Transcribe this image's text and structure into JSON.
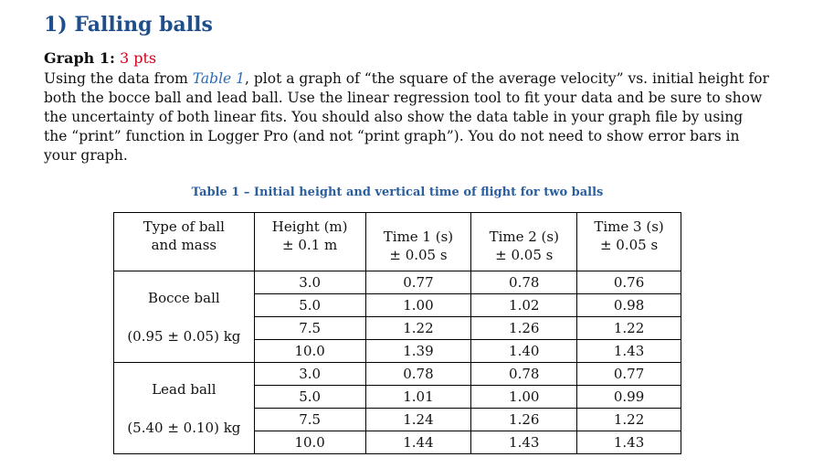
{
  "heading": "1) Falling balls",
  "graph": {
    "label": "Graph 1:",
    "points": "3 pts"
  },
  "paragraph": {
    "line1_a": "Using the data from ",
    "line1_ref": "Table 1",
    "line1_b": ", plot a graph of “the square of the average velocity” vs. initial height for",
    "line2": "both the bocce ball and lead ball. Use the linear regression tool to fit your data and be sure to show",
    "line3": "the uncertainty of both linear fits. You should also show the data table in your graph file by using",
    "line4": "the “print” function in Logger Pro (and not “print graph”). You do not need to show error bars in",
    "line5": "your graph."
  },
  "table": {
    "caption": "Table 1 – Initial height and vertical time of flight for two balls",
    "headers": [
      {
        "line1": "Type of ball",
        "line2": "and mass"
      },
      {
        "line1": "Height (m)",
        "line2": "± 0.1 m"
      },
      {
        "line1": "Time 1 (s)",
        "line2": "± 0.05 s"
      },
      {
        "line1": "Time 2 (s)",
        "line2": "± 0.05 s"
      },
      {
        "line1": "Time 3 (s)",
        "line2": "± 0.05 s"
      }
    ],
    "groups": [
      {
        "name": "Bocce ball",
        "mass": "(0.95 ± 0.05) kg",
        "rows": [
          [
            "3.0",
            "0.77",
            "0.78",
            "0.76"
          ],
          [
            "5.0",
            "1.00",
            "1.02",
            "0.98"
          ],
          [
            "7.5",
            "1.22",
            "1.26",
            "1.22"
          ],
          [
            "10.0",
            "1.39",
            "1.40",
            "1.43"
          ]
        ]
      },
      {
        "name": "Lead ball",
        "mass": "(5.40 ± 0.10) kg",
        "rows": [
          [
            "3.0",
            "0.78",
            "0.78",
            "0.77"
          ],
          [
            "5.0",
            "1.01",
            "1.00",
            "0.99"
          ],
          [
            "7.5",
            "1.24",
            "1.26",
            "1.22"
          ],
          [
            "10.0",
            "1.44",
            "1.43",
            "1.43"
          ]
        ]
      }
    ]
  }
}
